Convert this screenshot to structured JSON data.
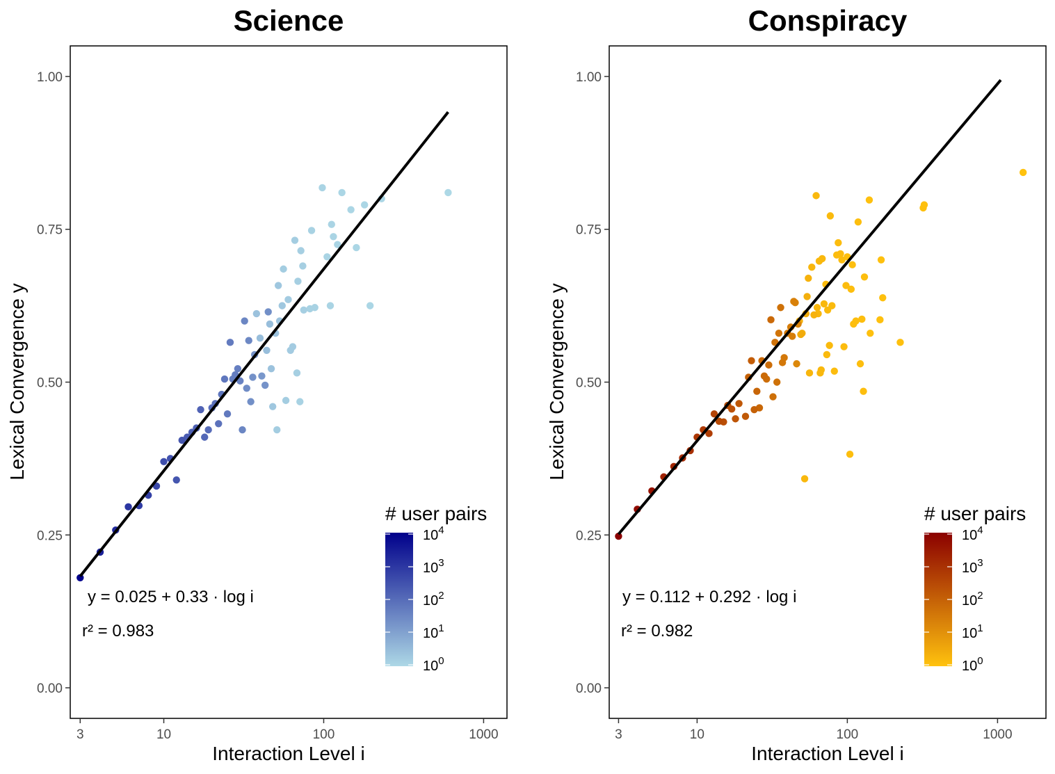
{
  "chart_data": [
    {
      "type": "scatter",
      "title": "Science",
      "xlabel": "Interaction Level i",
      "ylabel": "Lexical Convergence y",
      "x_scale": "log10",
      "xlim": [
        2.6,
        1400
      ],
      "ylim": [
        -0.05,
        1.05
      ],
      "x_ticks": [
        3,
        10,
        100,
        1000
      ],
      "x_tick_labels": [
        "3",
        "10",
        "100",
        "1000"
      ],
      "y_ticks": [
        0,
        0.25,
        0.5,
        0.75,
        1
      ],
      "y_tick_labels": [
        "0.00",
        "0.25",
        "0.50",
        "0.75",
        "1.00"
      ],
      "grid": false,
      "legend": {
        "title": "# user pairs",
        "position": "bottom-right",
        "labels": [
          "10^4",
          "10^3",
          "10^2",
          "10^1",
          "10^0"
        ],
        "color_low": "#ADD8E6",
        "color_high": "#00008B"
      },
      "fit": {
        "intercept": 0.025,
        "slope": 0.33,
        "x_range": [
          3,
          600
        ],
        "equation_label": "y = 0.025 + 0.33 · log i",
        "r2_label": "r² = 0.983",
        "color": "#000000"
      },
      "points": [
        {
          "x": 3,
          "y": 0.18,
          "n": 1.0
        },
        {
          "x": 4,
          "y": 0.222,
          "n": 0.85
        },
        {
          "x": 5,
          "y": 0.258,
          "n": 0.8
        },
        {
          "x": 6,
          "y": 0.296,
          "n": 0.75
        },
        {
          "x": 7,
          "y": 0.298,
          "n": 0.72
        },
        {
          "x": 8,
          "y": 0.315,
          "n": 0.7
        },
        {
          "x": 9,
          "y": 0.33,
          "n": 0.66
        },
        {
          "x": 10,
          "y": 0.37,
          "n": 0.64
        },
        {
          "x": 11,
          "y": 0.375,
          "n": 0.62
        },
        {
          "x": 12,
          "y": 0.34,
          "n": 0.6
        },
        {
          "x": 13,
          "y": 0.405,
          "n": 0.6
        },
        {
          "x": 14,
          "y": 0.41,
          "n": 0.58
        },
        {
          "x": 15,
          "y": 0.418,
          "n": 0.56
        },
        {
          "x": 16,
          "y": 0.425,
          "n": 0.55
        },
        {
          "x": 17,
          "y": 0.455,
          "n": 0.54
        },
        {
          "x": 18,
          "y": 0.41,
          "n": 0.52
        },
        {
          "x": 19,
          "y": 0.422,
          "n": 0.5
        },
        {
          "x": 20,
          "y": 0.458,
          "n": 0.5
        },
        {
          "x": 21,
          "y": 0.465,
          "n": 0.48
        },
        {
          "x": 22,
          "y": 0.432,
          "n": 0.47
        },
        {
          "x": 23,
          "y": 0.48,
          "n": 0.46
        },
        {
          "x": 24,
          "y": 0.505,
          "n": 0.45
        },
        {
          "x": 25,
          "y": 0.448,
          "n": 0.44
        },
        {
          "x": 26,
          "y": 0.565,
          "n": 0.43
        },
        {
          "x": 27,
          "y": 0.505,
          "n": 0.42
        },
        {
          "x": 28,
          "y": 0.512,
          "n": 0.42
        },
        {
          "x": 29,
          "y": 0.522,
          "n": 0.41
        },
        {
          "x": 30,
          "y": 0.502,
          "n": 0.4
        },
        {
          "x": 31,
          "y": 0.422,
          "n": 0.38
        },
        {
          "x": 32,
          "y": 0.6,
          "n": 0.38
        },
        {
          "x": 33,
          "y": 0.49,
          "n": 0.35
        },
        {
          "x": 34,
          "y": 0.568,
          "n": 0.37
        },
        {
          "x": 35,
          "y": 0.468,
          "n": 0.34
        },
        {
          "x": 36,
          "y": 0.508,
          "n": 0.33
        },
        {
          "x": 37,
          "y": 0.545,
          "n": 0.32
        },
        {
          "x": 38,
          "y": 0.612,
          "n": 0.1
        },
        {
          "x": 40,
          "y": 0.572,
          "n": 0.12
        },
        {
          "x": 41,
          "y": 0.51,
          "n": 0.3
        },
        {
          "x": 43,
          "y": 0.495,
          "n": 0.32
        },
        {
          "x": 44,
          "y": 0.552,
          "n": 0.12
        },
        {
          "x": 45,
          "y": 0.615,
          "n": 0.34
        },
        {
          "x": 46,
          "y": 0.595,
          "n": 0.12
        },
        {
          "x": 47,
          "y": 0.522,
          "n": 0.1
        },
        {
          "x": 48,
          "y": 0.46,
          "n": 0.08
        },
        {
          "x": 50,
          "y": 0.58,
          "n": 0.1
        },
        {
          "x": 51,
          "y": 0.422,
          "n": 0.05
        },
        {
          "x": 52,
          "y": 0.658,
          "n": 0.08
        },
        {
          "x": 53,
          "y": 0.6,
          "n": 0.1
        },
        {
          "x": 55,
          "y": 0.625,
          "n": 0.08
        },
        {
          "x": 56,
          "y": 0.685,
          "n": 0.05
        },
        {
          "x": 58,
          "y": 0.47,
          "n": 0.05
        },
        {
          "x": 60,
          "y": 0.635,
          "n": 0.06
        },
        {
          "x": 62,
          "y": 0.552,
          "n": 0.06
        },
        {
          "x": 64,
          "y": 0.558,
          "n": 0.06
        },
        {
          "x": 66,
          "y": 0.732,
          "n": 0.05
        },
        {
          "x": 68,
          "y": 0.515,
          "n": 0.04
        },
        {
          "x": 69,
          "y": 0.665,
          "n": 0.04
        },
        {
          "x": 71,
          "y": 0.468,
          "n": 0.03
        },
        {
          "x": 72,
          "y": 0.715,
          "n": 0.04
        },
        {
          "x": 74,
          "y": 0.69,
          "n": 0.04
        },
        {
          "x": 75,
          "y": 0.618,
          "n": 0.04
        },
        {
          "x": 82,
          "y": 0.62,
          "n": 0.03
        },
        {
          "x": 84,
          "y": 0.748,
          "n": 0.03
        },
        {
          "x": 88,
          "y": 0.622,
          "n": 0.03
        },
        {
          "x": 98,
          "y": 0.818,
          "n": 0.02
        },
        {
          "x": 105,
          "y": 0.705,
          "n": 0.02
        },
        {
          "x": 110,
          "y": 0.625,
          "n": 0.02
        },
        {
          "x": 112,
          "y": 0.758,
          "n": 0.02
        },
        {
          "x": 115,
          "y": 0.738,
          "n": 0.02
        },
        {
          "x": 122,
          "y": 0.725,
          "n": 0.02
        },
        {
          "x": 130,
          "y": 0.81,
          "n": 0.01
        },
        {
          "x": 148,
          "y": 0.782,
          "n": 0.01
        },
        {
          "x": 160,
          "y": 0.72,
          "n": 0.01
        },
        {
          "x": 180,
          "y": 0.79,
          "n": 0.01
        },
        {
          "x": 195,
          "y": 0.625,
          "n": 0.01
        },
        {
          "x": 230,
          "y": 0.8,
          "n": 0.01
        },
        {
          "x": 600,
          "y": 0.81,
          "n": 0.0
        }
      ]
    },
    {
      "type": "scatter",
      "title": "Conspiracy",
      "xlabel": "Interaction Level i",
      "ylabel": "Lexical Convergence y",
      "x_scale": "log10",
      "xlim": [
        2.6,
        2100
      ],
      "ylim": [
        -0.05,
        1.05
      ],
      "x_ticks": [
        3,
        10,
        100,
        1000
      ],
      "x_tick_labels": [
        "3",
        "10",
        "100",
        "1000"
      ],
      "y_ticks": [
        0,
        0.25,
        0.5,
        0.75,
        1
      ],
      "y_tick_labels": [
        "0.00",
        "0.25",
        "0.50",
        "0.75",
        "1.00"
      ],
      "grid": false,
      "legend": {
        "title": "# user pairs",
        "position": "bottom-right",
        "labels": [
          "10^4",
          "10^3",
          "10^2",
          "10^1",
          "10^0"
        ],
        "color_low": "#FFC20E",
        "color_high": "#8B0000"
      },
      "fit": {
        "intercept": 0.112,
        "slope": 0.292,
        "x_range": [
          3,
          1050
        ],
        "equation_label": "y = 0.112 + 0.292 · log i",
        "r2_label": "r² = 0.982",
        "color": "#000000"
      },
      "points": [
        {
          "x": 3,
          "y": 0.248,
          "n": 1.0
        },
        {
          "x": 4,
          "y": 0.292,
          "n": 0.95
        },
        {
          "x": 5,
          "y": 0.322,
          "n": 0.9
        },
        {
          "x": 6,
          "y": 0.345,
          "n": 0.82
        },
        {
          "x": 7,
          "y": 0.362,
          "n": 0.8
        },
        {
          "x": 8,
          "y": 0.376,
          "n": 0.78
        },
        {
          "x": 9,
          "y": 0.388,
          "n": 0.76
        },
        {
          "x": 10,
          "y": 0.41,
          "n": 0.72
        },
        {
          "x": 11,
          "y": 0.422,
          "n": 0.7
        },
        {
          "x": 12,
          "y": 0.416,
          "n": 0.68
        },
        {
          "x": 13,
          "y": 0.448,
          "n": 0.65
        },
        {
          "x": 14,
          "y": 0.436,
          "n": 0.62
        },
        {
          "x": 15,
          "y": 0.435,
          "n": 0.6
        },
        {
          "x": 16,
          "y": 0.462,
          "n": 0.6
        },
        {
          "x": 17,
          "y": 0.456,
          "n": 0.58
        },
        {
          "x": 18,
          "y": 0.44,
          "n": 0.56
        },
        {
          "x": 19,
          "y": 0.465,
          "n": 0.55
        },
        {
          "x": 21,
          "y": 0.444,
          "n": 0.54
        },
        {
          "x": 22,
          "y": 0.508,
          "n": 0.5
        },
        {
          "x": 23,
          "y": 0.535,
          "n": 0.52
        },
        {
          "x": 24,
          "y": 0.455,
          "n": 0.5
        },
        {
          "x": 25,
          "y": 0.485,
          "n": 0.48
        },
        {
          "x": 26,
          "y": 0.458,
          "n": 0.47
        },
        {
          "x": 27,
          "y": 0.535,
          "n": 0.46
        },
        {
          "x": 28,
          "y": 0.51,
          "n": 0.45
        },
        {
          "x": 29,
          "y": 0.505,
          "n": 0.44
        },
        {
          "x": 30,
          "y": 0.528,
          "n": 0.44
        },
        {
          "x": 31,
          "y": 0.602,
          "n": 0.46
        },
        {
          "x": 32,
          "y": 0.476,
          "n": 0.43
        },
        {
          "x": 33,
          "y": 0.565,
          "n": 0.42
        },
        {
          "x": 34,
          "y": 0.5,
          "n": 0.42
        },
        {
          "x": 35,
          "y": 0.58,
          "n": 0.4
        },
        {
          "x": 36,
          "y": 0.622,
          "n": 0.42
        },
        {
          "x": 37,
          "y": 0.532,
          "n": 0.38
        },
        {
          "x": 38,
          "y": 0.54,
          "n": 0.38
        },
        {
          "x": 40,
          "y": 0.58,
          "n": 0.37
        },
        {
          "x": 42,
          "y": 0.59,
          "n": 0.36
        },
        {
          "x": 43,
          "y": 0.575,
          "n": 0.35
        },
        {
          "x": 44,
          "y": 0.632,
          "n": 0.34
        },
        {
          "x": 45,
          "y": 0.63,
          "n": 0.33
        },
        {
          "x": 46,
          "y": 0.53,
          "n": 0.3
        },
        {
          "x": 47,
          "y": 0.595,
          "n": 0.32
        },
        {
          "x": 48,
          "y": 0.6,
          "n": 0.1
        },
        {
          "x": 49,
          "y": 0.578,
          "n": 0.12
        },
        {
          "x": 50,
          "y": 0.58,
          "n": 0.1
        },
        {
          "x": 52,
          "y": 0.342,
          "n": 0.05
        },
        {
          "x": 53,
          "y": 0.612,
          "n": 0.12
        },
        {
          "x": 54,
          "y": 0.64,
          "n": 0.1
        },
        {
          "x": 55,
          "y": 0.67,
          "n": 0.08
        },
        {
          "x": 56,
          "y": 0.515,
          "n": 0.06
        },
        {
          "x": 58,
          "y": 0.688,
          "n": 0.06
        },
        {
          "x": 60,
          "y": 0.61,
          "n": 0.08
        },
        {
          "x": 62,
          "y": 0.805,
          "n": 0.05
        },
        {
          "x": 63,
          "y": 0.622,
          "n": 0.06
        },
        {
          "x": 64,
          "y": 0.612,
          "n": 0.06
        },
        {
          "x": 65,
          "y": 0.698,
          "n": 0.05
        },
        {
          "x": 66,
          "y": 0.515,
          "n": 0.05
        },
        {
          "x": 67,
          "y": 0.52,
          "n": 0.05
        },
        {
          "x": 68,
          "y": 0.702,
          "n": 0.05
        },
        {
          "x": 70,
          "y": 0.628,
          "n": 0.05
        },
        {
          "x": 72,
          "y": 0.66,
          "n": 0.04
        },
        {
          "x": 73,
          "y": 0.545,
          "n": 0.04
        },
        {
          "x": 74,
          "y": 0.618,
          "n": 0.04
        },
        {
          "x": 76,
          "y": 0.56,
          "n": 0.04
        },
        {
          "x": 77,
          "y": 0.772,
          "n": 0.04
        },
        {
          "x": 79,
          "y": 0.625,
          "n": 0.04
        },
        {
          "x": 82,
          "y": 0.518,
          "n": 0.03
        },
        {
          "x": 85,
          "y": 0.708,
          "n": 0.03
        },
        {
          "x": 87,
          "y": 0.728,
          "n": 0.03
        },
        {
          "x": 90,
          "y": 0.71,
          "n": 0.03
        },
        {
          "x": 92,
          "y": 0.7,
          "n": 0.03
        },
        {
          "x": 95,
          "y": 0.558,
          "n": 0.03
        },
        {
          "x": 98,
          "y": 0.658,
          "n": 0.03
        },
        {
          "x": 100,
          "y": 0.705,
          "n": 0.02
        },
        {
          "x": 104,
          "y": 0.382,
          "n": 0.02
        },
        {
          "x": 106,
          "y": 0.652,
          "n": 0.02
        },
        {
          "x": 108,
          "y": 0.692,
          "n": 0.02
        },
        {
          "x": 110,
          "y": 0.595,
          "n": 0.02
        },
        {
          "x": 114,
          "y": 0.6,
          "n": 0.02
        },
        {
          "x": 118,
          "y": 0.762,
          "n": 0.02
        },
        {
          "x": 122,
          "y": 0.53,
          "n": 0.02
        },
        {
          "x": 125,
          "y": 0.603,
          "n": 0.02
        },
        {
          "x": 128,
          "y": 0.485,
          "n": 0.02
        },
        {
          "x": 130,
          "y": 0.672,
          "n": 0.02
        },
        {
          "x": 140,
          "y": 0.798,
          "n": 0.01
        },
        {
          "x": 142,
          "y": 0.58,
          "n": 0.01
        },
        {
          "x": 165,
          "y": 0.602,
          "n": 0.01
        },
        {
          "x": 168,
          "y": 0.7,
          "n": 0.01
        },
        {
          "x": 172,
          "y": 0.638,
          "n": 0.01
        },
        {
          "x": 225,
          "y": 0.565,
          "n": 0.01
        },
        {
          "x": 320,
          "y": 0.785,
          "n": 0.01
        },
        {
          "x": 325,
          "y": 0.79,
          "n": 0.01
        },
        {
          "x": 1480,
          "y": 0.843,
          "n": 0.0
        }
      ]
    }
  ]
}
